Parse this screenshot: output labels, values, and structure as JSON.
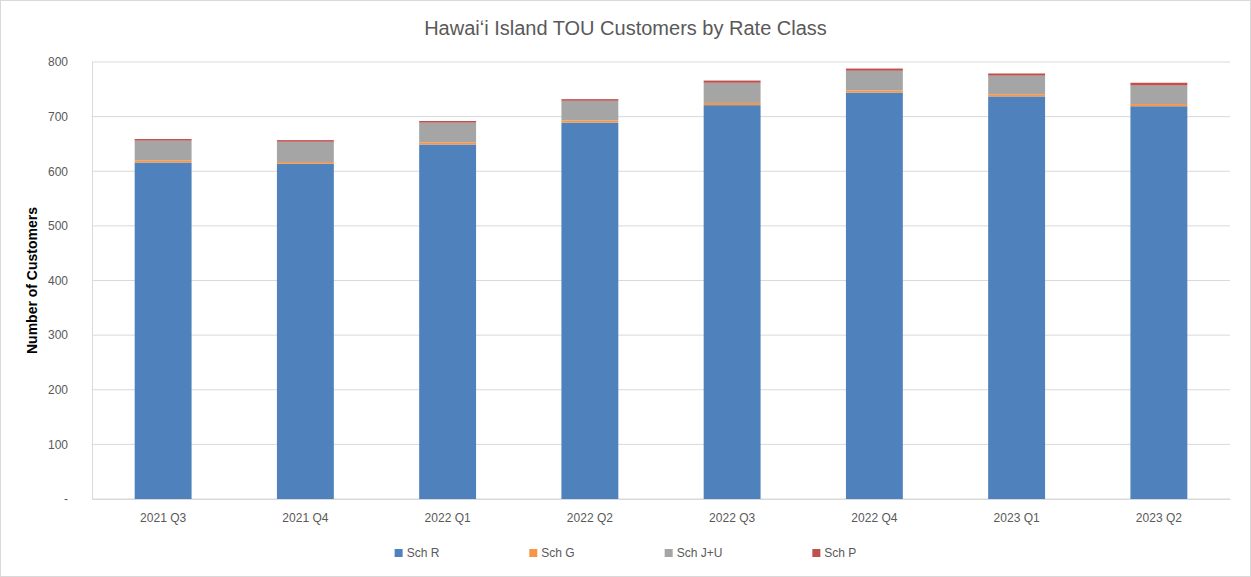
{
  "chart_data": {
    "type": "bar",
    "title": "Hawaiʻi Island TOU Customers by Rate Class",
    "y_label": "Number of Customers",
    "categories": [
      "2021 Q3",
      "2021 Q4",
      "2022 Q1",
      "2022 Q2",
      "2022 Q3",
      "2022 Q4",
      "2023 Q1",
      "2023 Q2"
    ],
    "series": [
      {
        "name": "Sch R",
        "color": "#4f81bd",
        "values": [
          616,
          614,
          649,
          689,
          721,
          744,
          737,
          719
        ]
      },
      {
        "name": "Sch G",
        "color": "#f79646",
        "values": [
          4,
          3,
          4,
          4,
          4,
          4,
          4,
          4
        ]
      },
      {
        "name": "Sch J+U",
        "color": "#a5a5a5",
        "values": [
          36,
          37,
          36,
          36,
          37,
          36,
          34,
          34
        ]
      },
      {
        "name": "Sch P",
        "color": "#c0504d",
        "values": [
          3,
          3,
          3,
          3,
          4,
          4,
          4,
          5
        ]
      }
    ],
    "ylim": [
      0,
      800
    ],
    "yticks": [
      {
        "value": 0,
        "label": "-"
      },
      100,
      200,
      300,
      400,
      500,
      600,
      700,
      800
    ],
    "stacked": true,
    "grid": true,
    "legend": "bottom"
  }
}
